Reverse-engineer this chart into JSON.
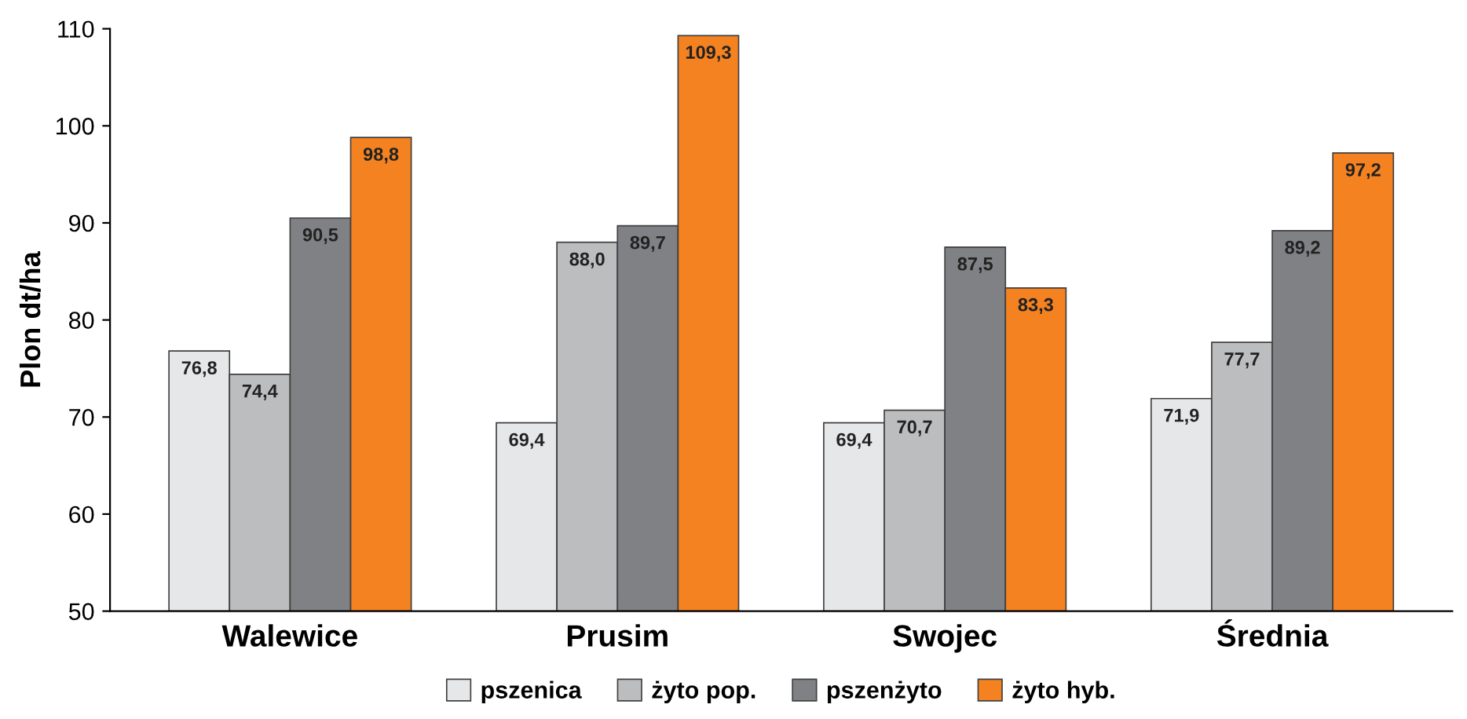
{
  "chart_data": {
    "type": "bar",
    "ylabel": "Plon dt/ha",
    "categories": [
      "Walewice",
      "Prusim",
      "Swojec",
      "Średnia"
    ],
    "ylim": [
      50,
      110
    ],
    "yticks": [
      50,
      60,
      70,
      80,
      90,
      100,
      110
    ],
    "grid": false,
    "legend": "bottom",
    "series": [
      {
        "name": "pszenica",
        "color": "#e6e7e8",
        "values": [
          76.8,
          69.4,
          69.4,
          71.9
        ],
        "value_labels": [
          "76,8",
          "69,4",
          "69,4",
          "71,9"
        ]
      },
      {
        "name": "żyto pop.",
        "color": "#bcbdbf",
        "values": [
          74.4,
          88.0,
          70.7,
          77.7
        ],
        "value_labels": [
          "74,4",
          "88,0",
          "70,7",
          "77,7"
        ]
      },
      {
        "name": "pszenżyto",
        "color": "#808184",
        "values": [
          90.5,
          89.7,
          87.5,
          89.2
        ],
        "value_labels": [
          "90,5",
          "89,7",
          "87,5",
          "89,2"
        ]
      },
      {
        "name": "żyto hyb.",
        "color": "#f58220",
        "values": [
          98.8,
          109.3,
          83.3,
          97.2
        ],
        "value_labels": [
          "98,8",
          "109,3",
          "83,3",
          "97,2"
        ]
      }
    ]
  }
}
